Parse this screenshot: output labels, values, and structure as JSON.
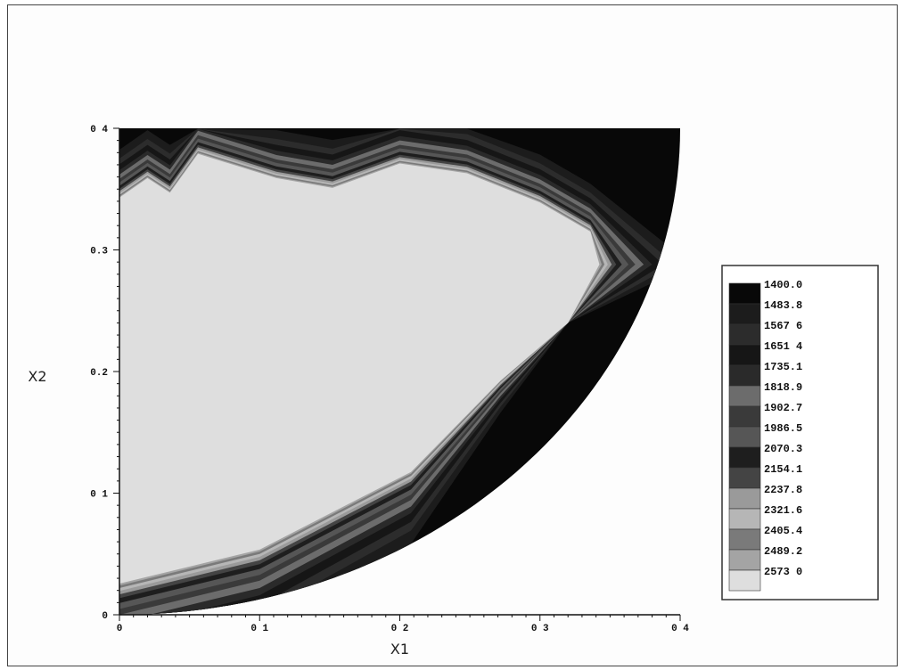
{
  "chart_data": {
    "type": "contour",
    "xlabel": "X1",
    "ylabel": "X2",
    "xlim": [
      0,
      0.4
    ],
    "ylim": [
      0,
      0.4
    ],
    "x_ticks": [
      {
        "value": 0,
        "label": "0"
      },
      {
        "value": 0.1,
        "label": "0 1"
      },
      {
        "value": 0.2,
        "label": "0 2"
      },
      {
        "value": 0.3,
        "label": "0 3"
      },
      {
        "value": 0.4,
        "label": "0 4"
      }
    ],
    "y_ticks": [
      {
        "value": 0,
        "label": "0"
      },
      {
        "value": 0.1,
        "label": "0 1"
      },
      {
        "value": 0.2,
        "label": "0.2"
      },
      {
        "value": 0.3,
        "label": "0.3"
      },
      {
        "value": 0.4,
        "label": "0 4"
      }
    ],
    "legend": {
      "placement": "right",
      "levels": [
        {
          "label": "1400.0",
          "color": "#080808"
        },
        {
          "label": "1483.8",
          "color": "#1c1c1c"
        },
        {
          "label": "1567 6",
          "color": "#2c2c2c"
        },
        {
          "label": "1651 4",
          "color": "#161616"
        },
        {
          "label": "1735.1",
          "color": "#2a2a2a"
        },
        {
          "label": "1818.9",
          "color": "#6c6c6c"
        },
        {
          "label": "1902.7",
          "color": "#3a3a3a"
        },
        {
          "label": "1986.5",
          "color": "#565656"
        },
        {
          "label": "2070.3",
          "color": "#1e1e1e"
        },
        {
          "label": "2154.1",
          "color": "#444444"
        },
        {
          "label": "2237.8",
          "color": "#9a9a9a"
        },
        {
          "label": "2321.6",
          "color": "#b6b6b6"
        },
        {
          "label": "2405.4",
          "color": "#7a7a7a"
        },
        {
          "label": "2489.2",
          "color": "#a4a4a4"
        },
        {
          "label": "2573 0",
          "color": "#dedede"
        }
      ]
    }
  }
}
